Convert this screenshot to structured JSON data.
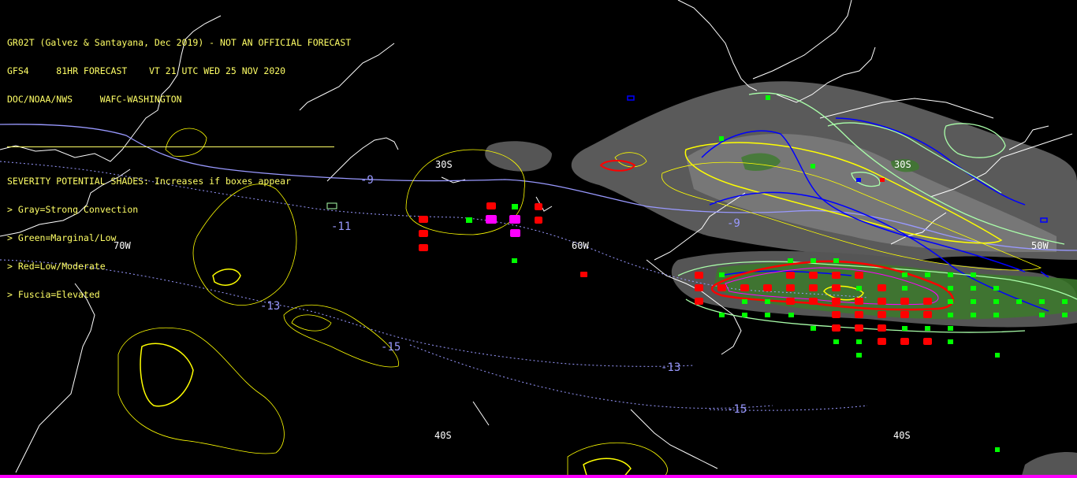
{
  "header": {
    "line1": "GR02T (Galvez & Santayana, Dec 2019) - NOT AN OFFICIAL FORECAST",
    "line2": "GFS4     81HR FORECAST    VT 21 UTC WED 25 NOV 2020",
    "line3": "DOC/NOAA/NWS     WAFC-WASHINGTON",
    "severity_title": "SEVERITY POTENTIAL SHADES: Increases if boxes appear",
    "legend": [
      "> Gray=Strong Convection",
      "> Green=Marginal/Low",
      "> Red=Low/Moderate",
      "> Fuscia=Elevated"
    ]
  },
  "map_labels": {
    "lat_30s_a": "30S",
    "lat_30s_b": "30S",
    "lat_40s_a": "40S",
    "lat_40s_b": "40S",
    "lon_70w": "70W",
    "lon_60w": "60W",
    "lon_50w": "50W",
    "temp_m9_a": "-9",
    "temp_m9_b": "-9",
    "temp_m11": "-11",
    "temp_m13_a": "-13",
    "temp_m13_b": "-13",
    "temp_m15_a": "-15",
    "temp_m15_b": "-15"
  },
  "colors": {
    "text": "#ffff66",
    "background": "#000000",
    "coastline": "#ffffff",
    "isotherm": "#9999ff",
    "gray_convection": "#6e6e6e",
    "green_marginal": "#00ff00",
    "red_moderate": "#ff0000",
    "fuscia_elevated": "#ff00ff",
    "contour_yellow": "#ffff00",
    "contour_blue": "#0000ff",
    "contour_lightgreen": "#aaffaa",
    "bottom_bar": "#ff00ff"
  }
}
